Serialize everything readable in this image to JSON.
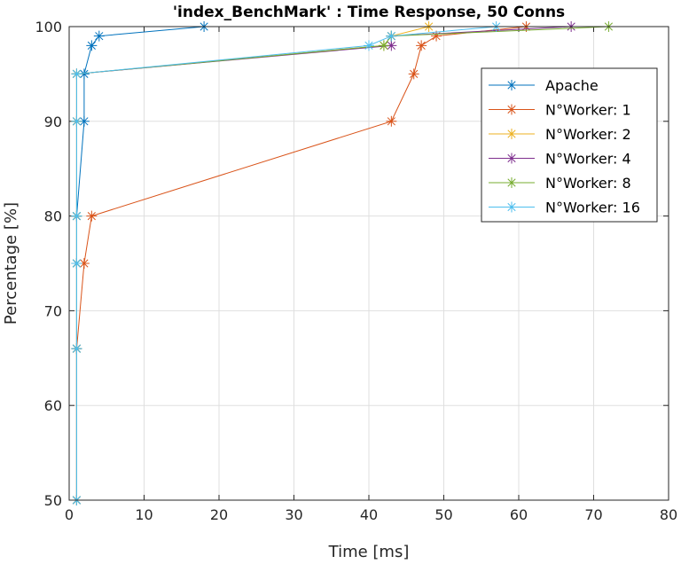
{
  "chart_data": {
    "type": "line",
    "title": "'index_BenchMark' : Time Response, 50 Conns",
    "xlabel": "Time [ms]",
    "ylabel": "Percentage [%]",
    "xlim": [
      0,
      80
    ],
    "ylim": [
      50,
      100
    ],
    "xticks": [
      0,
      10,
      20,
      30,
      40,
      50,
      60,
      70,
      80
    ],
    "yticks": [
      50,
      60,
      70,
      80,
      90,
      100
    ],
    "grid": true,
    "legend_position": "top-right",
    "marker": "asterisk",
    "series": [
      {
        "name": "Apache",
        "color": "#0072BD",
        "x": [
          1,
          1,
          1,
          1,
          2,
          2,
          3,
          4,
          18
        ],
        "y": [
          50,
          66,
          75,
          80,
          90,
          95,
          98,
          99,
          100
        ]
      },
      {
        "name": "N°Worker: 1",
        "color": "#D95319",
        "x": [
          1,
          1,
          2,
          3,
          43,
          46,
          47,
          49,
          61
        ],
        "y": [
          50,
          66,
          75,
          80,
          90,
          95,
          98,
          99,
          100
        ]
      },
      {
        "name": "N°Worker: 2",
        "color": "#EDB120",
        "x": [
          1,
          1,
          1,
          1,
          1,
          1,
          42,
          43,
          48
        ],
        "y": [
          50,
          66,
          75,
          80,
          90,
          95,
          98,
          99,
          100
        ]
      },
      {
        "name": "N°Worker: 4",
        "color": "#7E2F8E",
        "x": [
          1,
          1,
          1,
          1,
          1,
          1,
          43,
          43,
          67
        ],
        "y": [
          50,
          66,
          75,
          80,
          90,
          95,
          98,
          99,
          100
        ]
      },
      {
        "name": "N°Worker: 8",
        "color": "#77AC30",
        "x": [
          1,
          1,
          1,
          1,
          1,
          1,
          42,
          43,
          72
        ],
        "y": [
          50,
          66,
          75,
          80,
          90,
          95,
          98,
          99,
          100
        ]
      },
      {
        "name": "N°Worker: 16",
        "color": "#4DBEEE",
        "x": [
          1,
          1,
          1,
          1,
          1,
          1,
          40,
          43,
          57
        ],
        "y": [
          50,
          66,
          75,
          80,
          90,
          95,
          98,
          99,
          100
        ]
      }
    ]
  }
}
